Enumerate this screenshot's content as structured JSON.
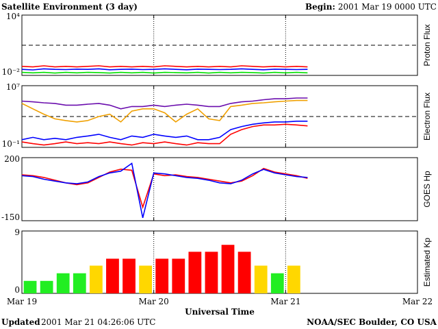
{
  "header": {
    "title": "Satellite Environment (3 day)",
    "begin_label": "Begin:",
    "begin": "2001 Mar 19 0000 UTC"
  },
  "footer": {
    "updated_label": "Updated",
    "updated": "2001 Mar 21 04:26:06 UTC",
    "source": "NOAA/SEC Boulder, CO USA"
  },
  "time_axis": {
    "label": "Universal Time",
    "xlim": [
      0,
      72
    ],
    "xticks": [
      {
        "value": 0,
        "label": "Mar 19"
      },
      {
        "value": 24,
        "label": "Mar 20"
      },
      {
        "value": 48,
        "label": "Mar 21"
      },
      {
        "value": 72,
        "label": "Mar 22"
      }
    ]
  },
  "chart_data": [
    {
      "type": "line",
      "ylabel": "Proton Flux",
      "log": true,
      "ylim": [
        0.01,
        10000
      ],
      "yticks": [
        {
          "value": 10000,
          "label": "10⁴"
        },
        {
          "value": 0.01,
          "label": "10⁻²"
        }
      ],
      "threshold": 10,
      "x": [
        0,
        2,
        4,
        6,
        8,
        10,
        12,
        14,
        16,
        18,
        20,
        22,
        24,
        26,
        28,
        30,
        32,
        34,
        36,
        38,
        40,
        42,
        44,
        46,
        48,
        50,
        52
      ],
      "series": [
        {
          "color": "#00e000",
          "values": [
            0.02,
            0.018,
            0.02,
            0.017,
            0.02,
            0.018,
            0.02,
            0.019,
            0.017,
            0.02,
            0.018,
            0.02,
            0.017,
            0.02,
            0.019,
            0.018,
            0.02,
            0.017,
            0.02,
            0.018,
            0.02,
            0.019,
            0.017,
            0.02,
            0.018,
            0.02,
            0.018
          ]
        },
        {
          "color": "#0000ff",
          "values": [
            0.04,
            0.035,
            0.045,
            0.04,
            0.038,
            0.042,
            0.04,
            0.045,
            0.036,
            0.04,
            0.042,
            0.038,
            0.04,
            0.045,
            0.04,
            0.036,
            0.042,
            0.04,
            0.038,
            0.04,
            0.045,
            0.04,
            0.036,
            0.042,
            0.04,
            0.038,
            0.04
          ]
        },
        {
          "color": "#ff0000",
          "values": [
            0.08,
            0.07,
            0.09,
            0.07,
            0.08,
            0.07,
            0.08,
            0.09,
            0.07,
            0.08,
            0.07,
            0.08,
            0.07,
            0.09,
            0.08,
            0.07,
            0.08,
            0.07,
            0.08,
            0.07,
            0.09,
            0.08,
            0.07,
            0.08,
            0.07,
            0.08,
            0.07
          ]
        }
      ]
    },
    {
      "type": "line",
      "ylabel": "Electron Flux",
      "log": true,
      "ylim": [
        0.1,
        10000000
      ],
      "yticks": [
        {
          "value": 10000000,
          "label": "10⁷"
        },
        {
          "value": 0.1,
          "label": "10⁻¹"
        }
      ],
      "threshold": 1000,
      "x": [
        0,
        2,
        4,
        6,
        8,
        10,
        12,
        14,
        16,
        18,
        20,
        22,
        24,
        26,
        28,
        30,
        32,
        34,
        36,
        38,
        40,
        42,
        44,
        46,
        48,
        50,
        52
      ],
      "series": [
        {
          "color": "#6a0dad",
          "values": [
            100000,
            80000,
            60000,
            50000,
            30000,
            30000,
            40000,
            50000,
            30000,
            10000,
            20000,
            20000,
            30000,
            20000,
            30000,
            40000,
            30000,
            20000,
            20000,
            50000,
            80000,
            100000,
            150000,
            200000,
            200000,
            250000,
            250000
          ]
        },
        {
          "color": "#f0a000",
          "values": [
            50000,
            10000,
            2000,
            500,
            300,
            200,
            300,
            1000,
            2000,
            200,
            5000,
            10000,
            10000,
            3000,
            200,
            2000,
            10000,
            500,
            300,
            20000,
            30000,
            50000,
            60000,
            80000,
            100000,
            120000,
            120000
          ]
        },
        {
          "color": "#ff0000",
          "values": [
            0.5,
            0.3,
            0.2,
            0.3,
            0.5,
            0.3,
            0.4,
            0.3,
            0.5,
            0.3,
            0.2,
            0.4,
            0.3,
            0.5,
            0.3,
            0.2,
            0.4,
            0.3,
            0.3,
            5,
            20,
            50,
            80,
            80,
            100,
            80,
            60
          ]
        },
        {
          "color": "#0000ff",
          "values": [
            1,
            2,
            1,
            1.5,
            1,
            2,
            3,
            5,
            2,
            1,
            3,
            2,
            5,
            3,
            2,
            3,
            1,
            1,
            2,
            20,
            50,
            100,
            150,
            200,
            200,
            250,
            250
          ]
        }
      ]
    },
    {
      "type": "line",
      "ylabel": "GOES Hp",
      "log": false,
      "ylim": [
        -150,
        200
      ],
      "yticks": [
        200,
        -150
      ],
      "x": [
        0,
        2,
        4,
        6,
        8,
        10,
        12,
        14,
        16,
        18,
        20,
        22,
        24,
        26,
        28,
        30,
        32,
        34,
        36,
        38,
        40,
        42,
        44,
        46,
        48,
        50,
        52
      ],
      "series": [
        {
          "color": "#ff0000",
          "values": [
            105,
            100,
            90,
            75,
            60,
            50,
            60,
            90,
            120,
            136,
            130,
            -75,
            110,
            100,
            105,
            95,
            90,
            80,
            70,
            60,
            70,
            100,
            140,
            120,
            110,
            100,
            85
          ]
        },
        {
          "color": "#0000ff",
          "values": [
            100,
            95,
            80,
            70,
            60,
            55,
            65,
            95,
            115,
            125,
            168,
            -134,
            115,
            110,
            100,
            90,
            85,
            75,
            60,
            55,
            75,
            110,
            135,
            115,
            105,
            95,
            90
          ]
        }
      ]
    },
    {
      "type": "bar",
      "ylabel": "Estimated Kp",
      "ylim": [
        0,
        9
      ],
      "yticks": [
        9,
        0
      ],
      "x": [
        1.5,
        4.5,
        7.5,
        10.5,
        13.5,
        16.5,
        19.5,
        22.5,
        25.5,
        28.5,
        31.5,
        34.5,
        37.5,
        40.5,
        43.5,
        46.5,
        49.5
      ],
      "values": [
        1.8,
        1.8,
        2.9,
        2.9,
        4,
        5,
        5,
        4,
        5,
        5,
        6,
        6,
        7,
        6,
        4,
        2.9,
        4
      ],
      "colors": [
        "#22ee22",
        "#22ee22",
        "#22ee22",
        "#22ee22",
        "#ffd700",
        "#ff0000",
        "#ff0000",
        "#ffd700",
        "#ff0000",
        "#ff0000",
        "#ff0000",
        "#ff0000",
        "#ff0000",
        "#ff0000",
        "#ffd700",
        "#22ee22",
        "#ffd700"
      ]
    }
  ]
}
